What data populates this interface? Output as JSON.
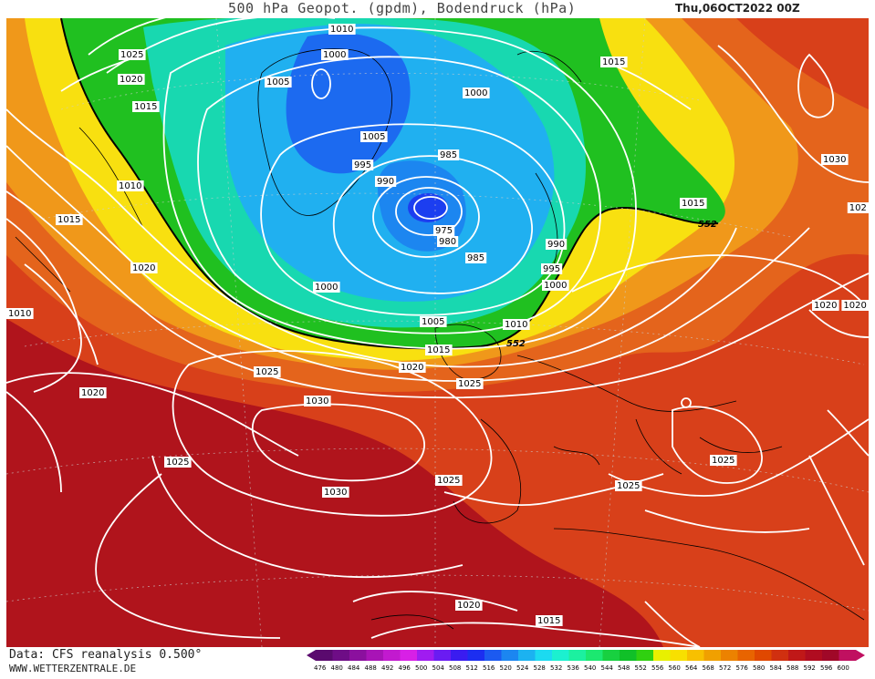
{
  "title": {
    "main": "500 hPa Geopot. (gpdm), Bodendruck (hPa)",
    "datetime": "Thu,06OCT2022 00Z"
  },
  "footer": {
    "data_source": "Data: CFS reanalysis 0.500°",
    "website": "WWW.WETTERZENTRALE.DE"
  },
  "colorbar": {
    "ticks": [
      "476",
      "480",
      "484",
      "488",
      "492",
      "496",
      "500",
      "504",
      "508",
      "512",
      "516",
      "520",
      "524",
      "528",
      "532",
      "536",
      "540",
      "544",
      "548",
      "552",
      "556",
      "560",
      "564",
      "568",
      "572",
      "576",
      "580",
      "584",
      "588",
      "592",
      "596",
      "600"
    ],
    "colors": [
      "#5a0a6e",
      "#6e0d86",
      "#8b109e",
      "#a814b6",
      "#c21acf",
      "#d820e6",
      "#a01cf0",
      "#6a1cf2",
      "#3a1cf0",
      "#1c2ef0",
      "#1c5af0",
      "#1c86f0",
      "#1cb2f0",
      "#1cdaf0",
      "#1cf0d0",
      "#1cf0a0",
      "#1ce870",
      "#18d040",
      "#10c028",
      "#30d010",
      "#e8f000",
      "#f8e000",
      "#f8c000",
      "#f0a000",
      "#ec8200",
      "#e86400",
      "#e04800",
      "#d03010",
      "#c01818",
      "#b00c20",
      "#a00828",
      "#c01060"
    ]
  },
  "isobar_labels": [
    {
      "text": "1010"
    },
    {
      "text": "1000"
    },
    {
      "text": "1025"
    },
    {
      "text": "1020"
    },
    {
      "text": "1015"
    },
    {
      "text": "1005"
    },
    {
      "text": "1000"
    },
    {
      "text": "1005"
    },
    {
      "text": "995"
    },
    {
      "text": "990"
    },
    {
      "text": "985"
    },
    {
      "text": "975"
    },
    {
      "text": "980"
    },
    {
      "text": "985"
    },
    {
      "text": "1015"
    },
    {
      "text": "1030"
    },
    {
      "text": "1015"
    },
    {
      "text": "1010"
    },
    {
      "text": "1015"
    },
    {
      "text": "1020"
    },
    {
      "text": "1000"
    },
    {
      "text": "1005"
    },
    {
      "text": "1010"
    },
    {
      "text": "990"
    },
    {
      "text": "995"
    },
    {
      "text": "1000"
    },
    {
      "text": "1025"
    },
    {
      "text": "1020"
    },
    {
      "text": "1015"
    },
    {
      "text": "1020"
    },
    {
      "text": "1025"
    },
    {
      "text": "1020"
    },
    {
      "text": "1030"
    },
    {
      "text": "1025"
    },
    {
      "text": "1030"
    },
    {
      "text": "1025"
    },
    {
      "text": "1025"
    },
    {
      "text": "1025"
    },
    {
      "text": "1020"
    },
    {
      "text": "1015"
    },
    {
      "text": "1010"
    },
    {
      "text": "102"
    },
    {
      "text": "1020"
    }
  ],
  "contour_labels": [
    {
      "text": "552"
    },
    {
      "text": "552"
    }
  ]
}
